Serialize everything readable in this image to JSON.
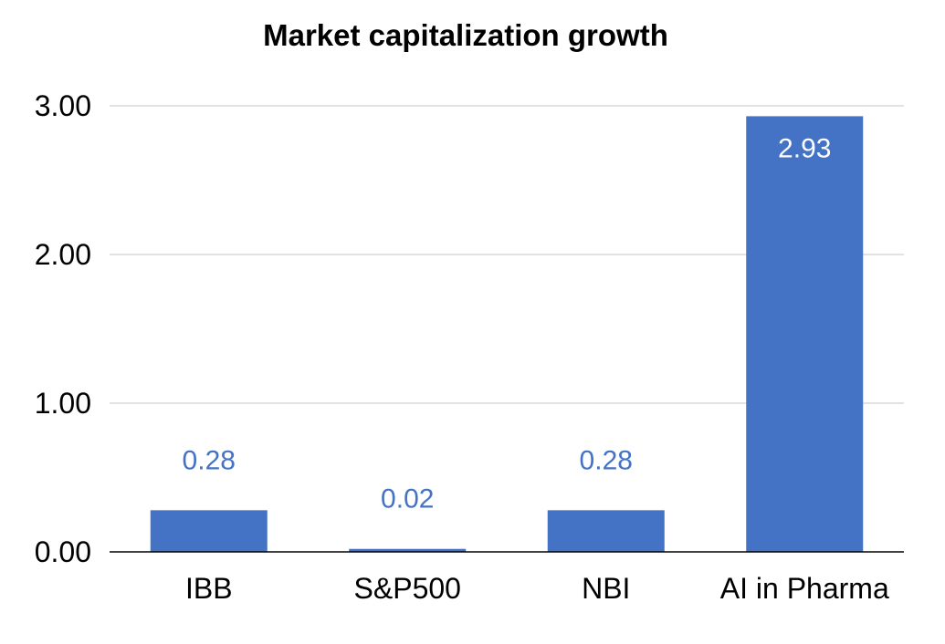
{
  "chart_data": {
    "type": "bar",
    "title": "Market capitalization growth",
    "xlabel": "",
    "ylabel": "",
    "categories": [
      "IBB",
      "S&P500",
      "NBI",
      "AI in Pharma"
    ],
    "values": [
      0.28,
      0.02,
      0.28,
      2.93
    ],
    "value_labels": [
      "0.28",
      "0.02",
      "0.28",
      "2.93"
    ],
    "ylim": [
      0,
      3
    ],
    "yticks": [
      0,
      1,
      2,
      3
    ],
    "ytick_labels": [
      "0.00",
      "1.00",
      "2.00",
      "3.00"
    ],
    "grid": true,
    "legend": "none",
    "colors": {
      "bar": "#4472C4",
      "label_outside": "#4472C4",
      "label_inside": "#FFFFFF",
      "grid": "#D9D9D9",
      "axis": "#000000"
    }
  }
}
